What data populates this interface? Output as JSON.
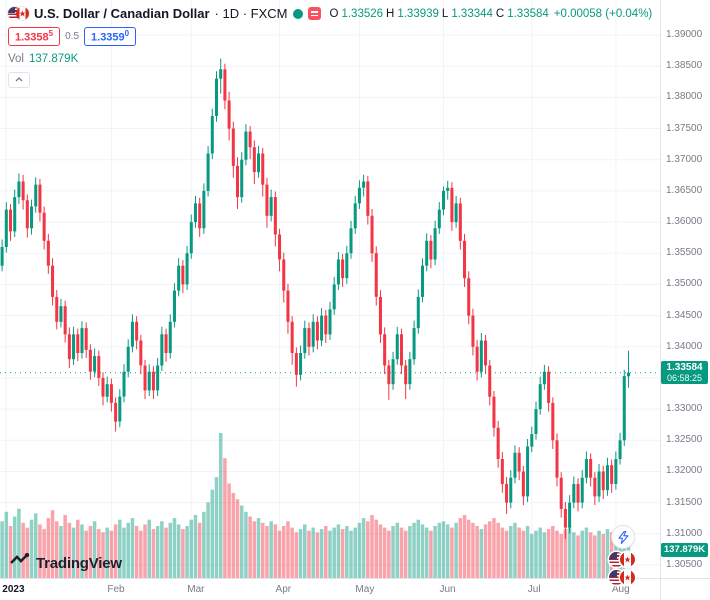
{
  "legend": {
    "symbol_title": "U.S. Dollar / Canadian Dollar",
    "meta": "· 1D · FXCM",
    "ohlc": {
      "o_label": "O",
      "o": "1.33526",
      "h_label": "H",
      "h": "1.33939",
      "l_label": "L",
      "l": "1.33344",
      "c_label": "C",
      "c": "1.33584",
      "change": "+0.00058 (+0.04%)"
    },
    "bid": {
      "main": "1.3358",
      "sup": "5"
    },
    "spread": "0.5",
    "ask": {
      "main": "1.3359",
      "sup": "0"
    },
    "vol_label": "Vol",
    "vol_value": "137.879K"
  },
  "price_badge": {
    "price": "1.33584",
    "countdown": "06:58:25"
  },
  "volume_badge": {
    "value": "137.879K"
  },
  "footer": {
    "logo_text": "TradingView"
  },
  "colors": {
    "up": "#089981",
    "down": "#f23645",
    "accent_blue": "#2962ff",
    "sell_red": "#f23645",
    "axis_text": "#787b86"
  },
  "chart_data": {
    "type": "candlestick",
    "title": "U.S. Dollar / Canadian Dollar · 1D · FXCM",
    "legend_position": "top-left",
    "grid": true,
    "price_range": [
      1.305,
      1.39
    ],
    "last_price": 1.33584,
    "slots": 157,
    "price_axis_labels": [
      "1.39000",
      "1.38500",
      "1.38000",
      "1.37500",
      "1.37000",
      "1.36500",
      "1.36000",
      "1.35500",
      "1.35000",
      "1.34500",
      "1.34000",
      "1.33500",
      "1.33000",
      "1.32500",
      "1.32000",
      "1.31500",
      "1.31000",
      "1.30500"
    ],
    "time_axis_labels": [
      {
        "label": "2023",
        "slot": 1,
        "bold": true
      },
      {
        "label": "Feb",
        "slot": 26
      },
      {
        "label": "Mar",
        "slot": 45
      },
      {
        "label": "Apr",
        "slot": 66
      },
      {
        "label": "May",
        "slot": 85
      },
      {
        "label": "Jun",
        "slot": 105
      },
      {
        "label": "Jul",
        "slot": 126
      },
      {
        "label": "Aug",
        "slot": 146
      }
    ],
    "candles": [
      [
        1.353,
        1.3572,
        1.3521,
        1.356
      ],
      [
        1.356,
        1.3632,
        1.3551,
        1.362
      ],
      [
        1.362,
        1.3629,
        1.357,
        1.3585
      ],
      [
        1.3585,
        1.3652,
        1.3576,
        1.364
      ],
      [
        1.364,
        1.3678,
        1.3629,
        1.3665
      ],
      [
        1.3665,
        1.3676,
        1.362,
        1.3635
      ],
      [
        1.3635,
        1.3644,
        1.3575,
        1.359
      ],
      [
        1.359,
        1.3636,
        1.358,
        1.3625
      ],
      [
        1.3625,
        1.3672,
        1.3615,
        1.366
      ],
      [
        1.366,
        1.3669,
        1.3601,
        1.3615
      ],
      [
        1.3615,
        1.3625,
        1.3556,
        1.357
      ],
      [
        1.357,
        1.3581,
        1.3517,
        1.353
      ],
      [
        1.353,
        1.3542,
        1.3466,
        1.348
      ],
      [
        1.348,
        1.3491,
        1.3428,
        1.344
      ],
      [
        1.344,
        1.3477,
        1.3431,
        1.3465
      ],
      [
        1.3465,
        1.3474,
        1.3407,
        1.342
      ],
      [
        1.342,
        1.3431,
        1.3366,
        1.338
      ],
      [
        1.338,
        1.3432,
        1.3371,
        1.342
      ],
      [
        1.342,
        1.3429,
        1.3377,
        1.339
      ],
      [
        1.339,
        1.3441,
        1.3381,
        1.343
      ],
      [
        1.343,
        1.3439,
        1.3382,
        1.3395
      ],
      [
        1.3395,
        1.3404,
        1.3347,
        1.336
      ],
      [
        1.336,
        1.3397,
        1.3351,
        1.3385
      ],
      [
        1.3385,
        1.3394,
        1.3337,
        1.335
      ],
      [
        1.335,
        1.3359,
        1.3306,
        1.332
      ],
      [
        1.332,
        1.3352,
        1.3311,
        1.334
      ],
      [
        1.334,
        1.3349,
        1.3296,
        1.331
      ],
      [
        1.331,
        1.3319,
        1.3264,
        1.328
      ],
      [
        1.328,
        1.3332,
        1.3271,
        1.332
      ],
      [
        1.332,
        1.3372,
        1.3311,
        1.336
      ],
      [
        1.336,
        1.3412,
        1.3351,
        1.34
      ],
      [
        1.34,
        1.3452,
        1.3391,
        1.344
      ],
      [
        1.344,
        1.3449,
        1.3396,
        1.341
      ],
      [
        1.341,
        1.3419,
        1.3356,
        1.337
      ],
      [
        1.337,
        1.3379,
        1.3316,
        1.333
      ],
      [
        1.333,
        1.3372,
        1.3321,
        1.336
      ],
      [
        1.336,
        1.3369,
        1.3316,
        1.333
      ],
      [
        1.333,
        1.3382,
        1.3321,
        1.337
      ],
      [
        1.337,
        1.3432,
        1.3361,
        1.342
      ],
      [
        1.342,
        1.3429,
        1.3376,
        1.339
      ],
      [
        1.339,
        1.3452,
        1.3381,
        1.344
      ],
      [
        1.344,
        1.3502,
        1.3431,
        1.349
      ],
      [
        1.349,
        1.3542,
        1.3481,
        1.353
      ],
      [
        1.353,
        1.3539,
        1.3486,
        1.35
      ],
      [
        1.35,
        1.3562,
        1.3491,
        1.355
      ],
      [
        1.355,
        1.3612,
        1.3541,
        1.36
      ],
      [
        1.36,
        1.3642,
        1.3591,
        1.363
      ],
      [
        1.363,
        1.3639,
        1.3576,
        1.359
      ],
      [
        1.359,
        1.3662,
        1.3581,
        1.365
      ],
      [
        1.365,
        1.3722,
        1.3641,
        1.371
      ],
      [
        1.371,
        1.3782,
        1.3701,
        1.377
      ],
      [
        1.377,
        1.3842,
        1.3761,
        1.383
      ],
      [
        1.383,
        1.3862,
        1.3806,
        1.3845
      ],
      [
        1.3845,
        1.3854,
        1.3781,
        1.3795
      ],
      [
        1.3795,
        1.3809,
        1.3731,
        1.375
      ],
      [
        1.375,
        1.3761,
        1.3671,
        1.369
      ],
      [
        1.369,
        1.3704,
        1.3621,
        1.364
      ],
      [
        1.364,
        1.3712,
        1.3631,
        1.37
      ],
      [
        1.37,
        1.3757,
        1.3691,
        1.3745
      ],
      [
        1.3745,
        1.3754,
        1.3701,
        1.372
      ],
      [
        1.372,
        1.3731,
        1.3661,
        1.368
      ],
      [
        1.368,
        1.3722,
        1.3671,
        1.371
      ],
      [
        1.371,
        1.3719,
        1.3641,
        1.366
      ],
      [
        1.366,
        1.3671,
        1.3591,
        1.361
      ],
      [
        1.361,
        1.3652,
        1.3601,
        1.364
      ],
      [
        1.364,
        1.3649,
        1.3561,
        1.358
      ],
      [
        1.358,
        1.3589,
        1.3521,
        1.354
      ],
      [
        1.354,
        1.3551,
        1.3471,
        1.349
      ],
      [
        1.349,
        1.3501,
        1.3421,
        1.344
      ],
      [
        1.344,
        1.3449,
        1.3371,
        1.339
      ],
      [
        1.339,
        1.3399,
        1.3336,
        1.3355
      ],
      [
        1.3355,
        1.3402,
        1.3346,
        1.339
      ],
      [
        1.339,
        1.3442,
        1.3381,
        1.343
      ],
      [
        1.343,
        1.3439,
        1.3386,
        1.34
      ],
      [
        1.34,
        1.3452,
        1.3391,
        1.344
      ],
      [
        1.344,
        1.3449,
        1.3396,
        1.341
      ],
      [
        1.341,
        1.3462,
        1.3401,
        1.345
      ],
      [
        1.345,
        1.3459,
        1.3406,
        1.342
      ],
      [
        1.342,
        1.3472,
        1.3411,
        1.346
      ],
      [
        1.346,
        1.3512,
        1.3451,
        1.35
      ],
      [
        1.35,
        1.3552,
        1.3491,
        1.354
      ],
      [
        1.354,
        1.3549,
        1.3496,
        1.351
      ],
      [
        1.351,
        1.3562,
        1.3501,
        1.355
      ],
      [
        1.355,
        1.3602,
        1.3541,
        1.359
      ],
      [
        1.359,
        1.3642,
        1.3581,
        1.363
      ],
      [
        1.363,
        1.3667,
        1.3621,
        1.3655
      ],
      [
        1.3655,
        1.3676,
        1.3641,
        1.3665
      ],
      [
        1.3665,
        1.3674,
        1.3596,
        1.361
      ],
      [
        1.361,
        1.3621,
        1.3536,
        1.355
      ],
      [
        1.355,
        1.3561,
        1.3466,
        1.348
      ],
      [
        1.348,
        1.3491,
        1.3406,
        1.342
      ],
      [
        1.342,
        1.3431,
        1.3356,
        1.337
      ],
      [
        1.337,
        1.3379,
        1.3315,
        1.334
      ],
      [
        1.334,
        1.3392,
        1.3331,
        1.338
      ],
      [
        1.338,
        1.3432,
        1.3371,
        1.342
      ],
      [
        1.342,
        1.3429,
        1.3356,
        1.337
      ],
      [
        1.337,
        1.3379,
        1.3316,
        1.334
      ],
      [
        1.334,
        1.3392,
        1.3331,
        1.338
      ],
      [
        1.338,
        1.3442,
        1.3371,
        1.343
      ],
      [
        1.343,
        1.3492,
        1.3421,
        1.348
      ],
      [
        1.348,
        1.3542,
        1.3471,
        1.353
      ],
      [
        1.353,
        1.3582,
        1.3521,
        1.357
      ],
      [
        1.357,
        1.3579,
        1.3526,
        1.354
      ],
      [
        1.354,
        1.3602,
        1.3531,
        1.359
      ],
      [
        1.359,
        1.3632,
        1.3581,
        1.362
      ],
      [
        1.362,
        1.3657,
        1.3611,
        1.365
      ],
      [
        1.365,
        1.3666,
        1.3636,
        1.3655
      ],
      [
        1.3655,
        1.3664,
        1.3586,
        1.36
      ],
      [
        1.36,
        1.3642,
        1.3591,
        1.363
      ],
      [
        1.363,
        1.3639,
        1.3556,
        1.357
      ],
      [
        1.357,
        1.3581,
        1.3496,
        1.351
      ],
      [
        1.351,
        1.3521,
        1.3436,
        1.345
      ],
      [
        1.345,
        1.3461,
        1.3386,
        1.34
      ],
      [
        1.34,
        1.3411,
        1.3346,
        1.336
      ],
      [
        1.336,
        1.3422,
        1.3351,
        1.341
      ],
      [
        1.341,
        1.3419,
        1.3356,
        1.337
      ],
      [
        1.337,
        1.3379,
        1.3306,
        1.332
      ],
      [
        1.332,
        1.3329,
        1.3256,
        1.327
      ],
      [
        1.327,
        1.3281,
        1.3206,
        1.322
      ],
      [
        1.322,
        1.3231,
        1.3166,
        1.318
      ],
      [
        1.318,
        1.3191,
        1.3132,
        1.315
      ],
      [
        1.315,
        1.3202,
        1.3141,
        1.319
      ],
      [
        1.319,
        1.3242,
        1.3181,
        1.323
      ],
      [
        1.323,
        1.3239,
        1.3186,
        1.32
      ],
      [
        1.32,
        1.3209,
        1.3146,
        1.316
      ],
      [
        1.316,
        1.3252,
        1.3151,
        1.324
      ],
      [
        1.324,
        1.3272,
        1.3231,
        1.326
      ],
      [
        1.326,
        1.3312,
        1.3251,
        1.33
      ],
      [
        1.33,
        1.3352,
        1.3291,
        1.334
      ],
      [
        1.334,
        1.3371,
        1.3331,
        1.336
      ],
      [
        1.336,
        1.3369,
        1.3296,
        1.331
      ],
      [
        1.331,
        1.3319,
        1.3236,
        1.325
      ],
      [
        1.325,
        1.3261,
        1.3176,
        1.319
      ],
      [
        1.319,
        1.3199,
        1.3126,
        1.314
      ],
      [
        1.314,
        1.3151,
        1.3092,
        1.311
      ],
      [
        1.311,
        1.3162,
        1.3101,
        1.315
      ],
      [
        1.315,
        1.3192,
        1.3141,
        1.318
      ],
      [
        1.318,
        1.3189,
        1.3136,
        1.315
      ],
      [
        1.315,
        1.3202,
        1.3141,
        1.319
      ],
      [
        1.319,
        1.3232,
        1.3181,
        1.322
      ],
      [
        1.322,
        1.3229,
        1.3176,
        1.319
      ],
      [
        1.319,
        1.3199,
        1.3146,
        1.316
      ],
      [
        1.316,
        1.3212,
        1.3151,
        1.32
      ],
      [
        1.32,
        1.3209,
        1.3156,
        1.317
      ],
      [
        1.317,
        1.3222,
        1.3161,
        1.321
      ],
      [
        1.321,
        1.3219,
        1.3166,
        1.318
      ],
      [
        1.318,
        1.3232,
        1.3171,
        1.322
      ],
      [
        1.322,
        1.3262,
        1.3211,
        1.325
      ],
      [
        1.325,
        1.3363,
        1.3241,
        1.3353
      ],
      [
        1.33526,
        1.33939,
        1.33344,
        1.33584
      ]
    ],
    "volumes_k": [
      180,
      210,
      165,
      195,
      220,
      175,
      160,
      185,
      205,
      170,
      155,
      190,
      215,
      180,
      165,
      200,
      175,
      160,
      185,
      170,
      150,
      165,
      180,
      155,
      145,
      160,
      150,
      170,
      185,
      160,
      175,
      190,
      165,
      150,
      170,
      185,
      155,
      165,
      180,
      160,
      175,
      190,
      170,
      155,
      165,
      185,
      200,
      175,
      210,
      240,
      280,
      320,
      460,
      380,
      300,
      270,
      250,
      230,
      210,
      195,
      180,
      190,
      175,
      165,
      180,
      170,
      150,
      165,
      180,
      160,
      145,
      155,
      170,
      150,
      160,
      145,
      155,
      165,
      150,
      160,
      170,
      155,
      165,
      150,
      160,
      175,
      190,
      180,
      200,
      185,
      170,
      160,
      150,
      165,
      175,
      160,
      150,
      165,
      175,
      185,
      170,
      160,
      150,
      165,
      175,
      180,
      170,
      160,
      175,
      190,
      200,
      185,
      175,
      165,
      155,
      170,
      180,
      190,
      175,
      160,
      150,
      165,
      175,
      160,
      150,
      165,
      140,
      150,
      160,
      145,
      155,
      165,
      150,
      140,
      155,
      165,
      145,
      135,
      150,
      160,
      145,
      135,
      150,
      140,
      155,
      145,
      130,
      145,
      160,
      137.879
    ]
  }
}
